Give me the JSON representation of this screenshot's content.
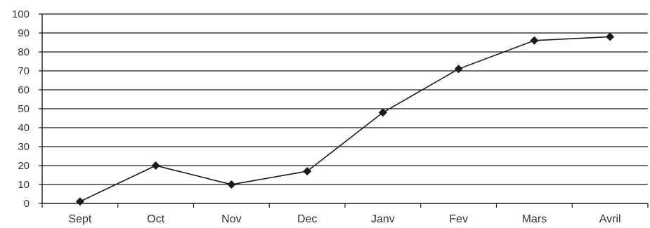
{
  "chart_data": {
    "type": "line",
    "categories": [
      "Sept",
      "Oct",
      "Nov",
      "Dec",
      "Janv",
      "Fev",
      "Mars",
      "Avril"
    ],
    "series": [
      {
        "values": [
          1,
          20,
          10,
          17,
          48,
          71,
          86,
          88
        ]
      }
    ],
    "yticks": [
      "0",
      "10",
      "20",
      "30",
      "40",
      "50",
      "60",
      "70",
      "80",
      "90",
      "100"
    ],
    "ylim": [
      0,
      100
    ],
    "grid": true,
    "legend": "none",
    "marker": "diamond",
    "colors": {
      "line": "#1a1a1a",
      "grid": "#1a1a1a",
      "text": "#333333"
    }
  }
}
